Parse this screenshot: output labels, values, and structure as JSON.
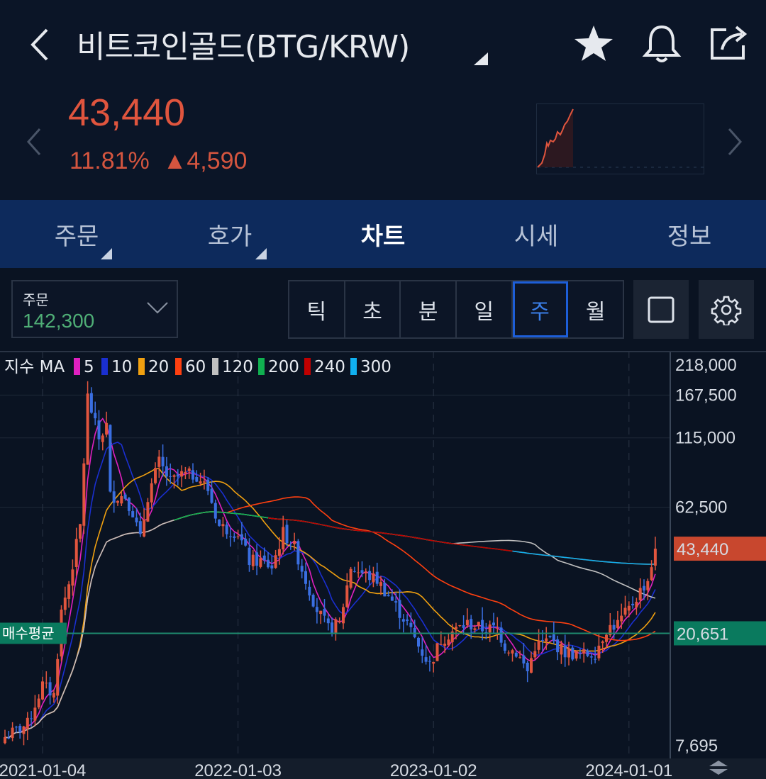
{
  "header": {
    "title": "비트코인골드(BTG/KRW)",
    "price": "43,440",
    "change_percent": "11.81%",
    "change_amount": "4,590",
    "price_color": "#e0553e",
    "icons": [
      "back-arrow-icon",
      "star-icon",
      "bell-icon",
      "share-icon",
      "dropdown-triangle-icon",
      "prev-chevron-icon",
      "next-chevron-icon"
    ]
  },
  "tabs": [
    {
      "label": "주문",
      "active": false
    },
    {
      "label": "호가",
      "active": false
    },
    {
      "label": "차트",
      "active": true
    },
    {
      "label": "시세",
      "active": false
    },
    {
      "label": "정보",
      "active": false
    }
  ],
  "toolbar": {
    "order_label": "주문",
    "order_value": "142,300",
    "periods": [
      "틱",
      "초",
      "분",
      "일",
      "주",
      "월"
    ],
    "selected_period": "주"
  },
  "legend": {
    "prefix": "지수 MA",
    "items": [
      {
        "label": "5",
        "color": "#e020c0"
      },
      {
        "label": "10",
        "color": "#1a2fd0"
      },
      {
        "label": "20",
        "color": "#f0a010"
      },
      {
        "label": "60",
        "color": "#ff4010"
      },
      {
        "label": "120",
        "color": "#c0c0c0"
      },
      {
        "label": "200",
        "color": "#10b050"
      },
      {
        "label": "240",
        "color": "#c00000"
      },
      {
        "label": "300",
        "color": "#10b0f0"
      }
    ]
  },
  "chart_data": {
    "type": "candlestick",
    "y_scale": "log",
    "ylim": [
      7695,
      218000
    ],
    "y_ticks": [
      "218,000",
      "167,500",
      "115,000",
      "62,500",
      "7,695"
    ],
    "x_ticks": [
      "2021-01-04",
      "2022-01-03",
      "2023-01-02",
      "2024-01-01"
    ],
    "current_price_label": "43,440",
    "avg_buy_label": "매수평균",
    "avg_buy_price": "20,651",
    "avg_buy_value": 20651,
    "current_price_value": 43440,
    "up_color": "#e0553e",
    "down_color": "#3a6ee0",
    "grid": true,
    "weekly_close": [
      [
        "2020-10-26",
        8300
      ],
      [
        "2020-12-07",
        9300
      ],
      [
        "2021-01-04",
        13100
      ],
      [
        "2021-01-25",
        12000
      ],
      [
        "2021-02-08",
        25000
      ],
      [
        "2021-02-22",
        32000
      ],
      [
        "2021-03-15",
        53000
      ],
      [
        "2021-03-29",
        165000
      ],
      [
        "2021-04-19",
        114000
      ],
      [
        "2021-05-03",
        128000
      ],
      [
        "2021-05-10",
        69000
      ],
      [
        "2021-06-07",
        69000
      ],
      [
        "2021-06-21",
        60000
      ],
      [
        "2021-07-05",
        47000
      ],
      [
        "2021-07-19",
        69000
      ],
      [
        "2021-08-09",
        93000
      ],
      [
        "2021-08-30",
        78000
      ],
      [
        "2021-09-20",
        83000
      ],
      [
        "2021-10-18",
        83000
      ],
      [
        "2021-11-08",
        73000
      ],
      [
        "2021-11-29",
        53000
      ],
      [
        "2022-01-03",
        50000
      ],
      [
        "2022-01-24",
        39000
      ],
      [
        "2022-02-14",
        39000
      ],
      [
        "2022-03-07",
        37000
      ],
      [
        "2022-03-28",
        50000
      ],
      [
        "2022-04-18",
        44000
      ],
      [
        "2022-05-09",
        33000
      ],
      [
        "2022-05-30",
        25500
      ],
      [
        "2022-06-20",
        21500
      ],
      [
        "2022-07-11",
        22500
      ],
      [
        "2022-08-01",
        37000
      ],
      [
        "2022-08-22",
        35000
      ],
      [
        "2022-09-19",
        33000
      ],
      [
        "2022-10-17",
        27500
      ],
      [
        "2022-11-14",
        22500
      ],
      [
        "2022-12-05",
        18500
      ],
      [
        "2022-12-26",
        15700
      ],
      [
        "2023-01-16",
        19500
      ],
      [
        "2023-02-06",
        21000
      ],
      [
        "2023-03-06",
        22500
      ],
      [
        "2023-04-03",
        21500
      ],
      [
        "2023-05-01",
        21500
      ],
      [
        "2023-05-15",
        18500
      ],
      [
        "2023-06-05",
        17500
      ],
      [
        "2023-06-26",
        14800
      ],
      [
        "2023-07-10",
        18500
      ],
      [
        "2023-08-07",
        19500
      ],
      [
        "2023-09-04",
        17500
      ],
      [
        "2023-10-02",
        17000
      ],
      [
        "2023-10-30",
        17500
      ],
      [
        "2023-11-20",
        21500
      ],
      [
        "2023-12-11",
        22500
      ],
      [
        "2024-01-01",
        25500
      ],
      [
        "2024-01-22",
        30000
      ],
      [
        "2024-02-05",
        33000
      ],
      [
        "2024-02-19",
        43440
      ]
    ]
  }
}
